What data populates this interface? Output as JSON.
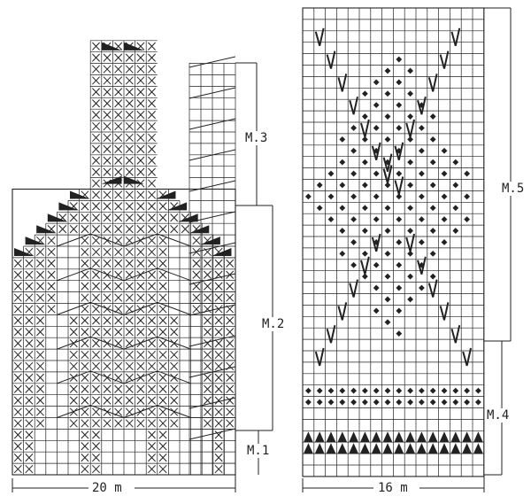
{
  "colors": {
    "ink": "#222222",
    "paper": "#ffffff"
  },
  "left_chart": {
    "labels": {
      "m3": "M.3",
      "m2": "M.2",
      "m1": "M.1"
    },
    "width_label": "20 m",
    "cols": 20,
    "rows": 38,
    "symbols": [
      "cross-stitch-symbol",
      "dark-triangle-symbol",
      "diagonal-line-symbol"
    ]
  },
  "right_chart": {
    "labels": {
      "m5": "M.5",
      "m4": "M.4"
    },
    "width_label": "16 m",
    "cols": 16,
    "rows": 41,
    "symbols": [
      "diamond-dot-symbol",
      "v-stitch-symbol",
      "triangle-row-symbol"
    ]
  }
}
